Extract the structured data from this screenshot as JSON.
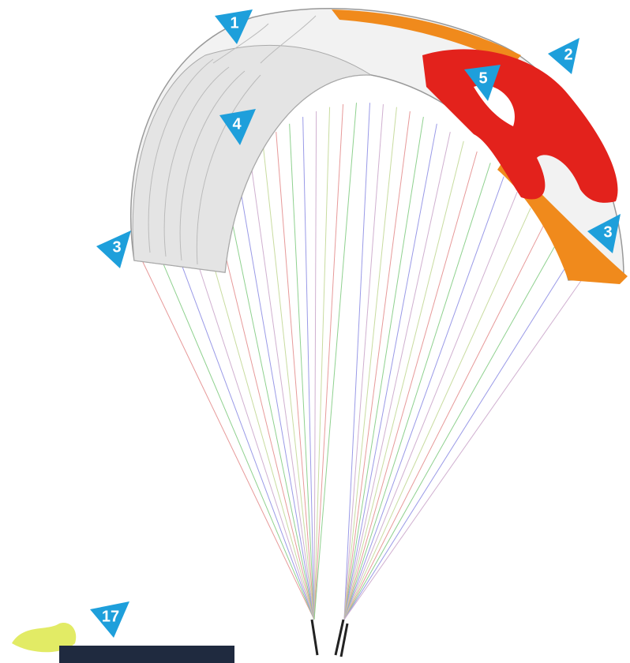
{
  "callouts": [
    {
      "label": "1"
    },
    {
      "label": "2"
    },
    {
      "label": "3"
    },
    {
      "label": "4"
    },
    {
      "label": "5"
    },
    {
      "label": "3"
    },
    {
      "label": "17"
    }
  ]
}
